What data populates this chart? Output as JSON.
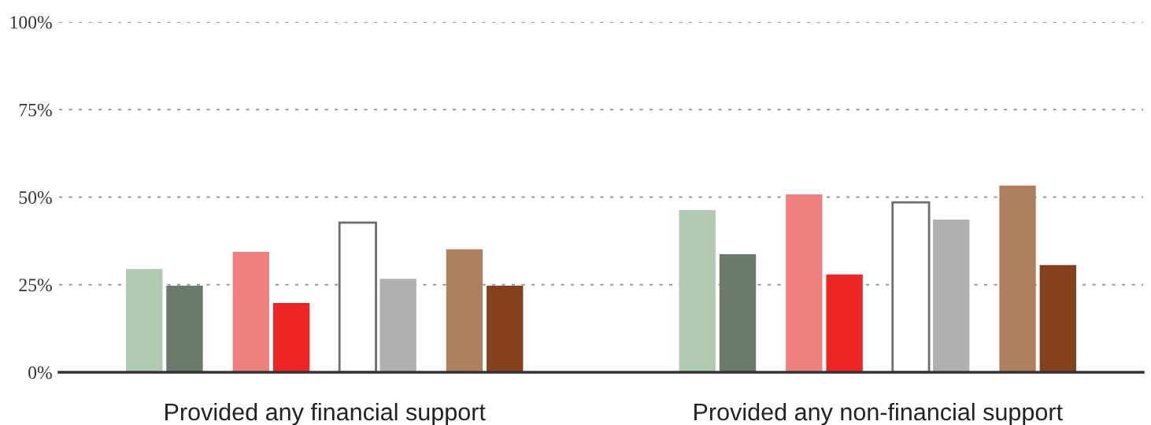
{
  "chart_data": {
    "type": "bar",
    "categories": [
      "Provided any financial support",
      "Provided any non-financial support"
    ],
    "series": [
      {
        "color": "#b2c9b1",
        "values": [
          29.5,
          46.3
        ]
      },
      {
        "color": "#6b7b6b",
        "values": [
          24.7,
          33.7
        ]
      },
      {
        "color": "#f08080",
        "values": [
          34.4,
          50.8
        ]
      },
      {
        "color": "#ee2524",
        "values": [
          19.8,
          27.9
        ]
      },
      {
        "color": "#ffffff",
        "values": [
          42.7,
          48.5
        ]
      },
      {
        "color": "#b0b0b0",
        "values": [
          26.7,
          43.6
        ]
      },
      {
        "color": "#ae8060",
        "values": [
          35.1,
          53.3
        ]
      },
      {
        "color": "#85411c",
        "values": [
          24.7,
          30.6
        ]
      }
    ],
    "ylim": [
      0,
      100
    ],
    "yticks": [
      {
        "value": 0,
        "label": "0%"
      },
      {
        "value": 25,
        "label": "25%"
      },
      {
        "value": 50,
        "label": "50%"
      },
      {
        "value": 75,
        "label": "75%"
      },
      {
        "value": 100,
        "label": "100%"
      }
    ],
    "grid": "y"
  }
}
